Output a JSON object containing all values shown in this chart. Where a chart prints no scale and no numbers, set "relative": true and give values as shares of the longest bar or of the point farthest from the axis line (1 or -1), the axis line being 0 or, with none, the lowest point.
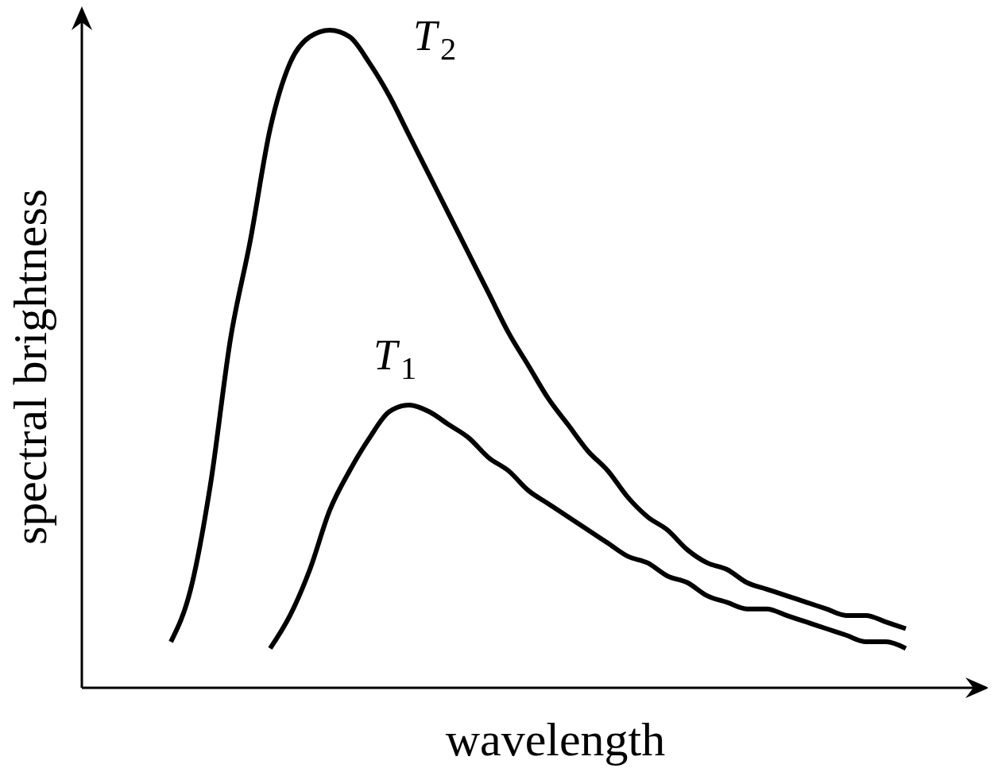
{
  "chart_data": {
    "type": "line",
    "relative": true,
    "xlabel": "wavelength",
    "ylabel": "spectral brightness",
    "categories": [
      null,
      null,
      null,
      null,
      null,
      null,
      null,
      null,
      null,
      null,
      null,
      null,
      null,
      null,
      null,
      null,
      null,
      null,
      null,
      null,
      null,
      null,
      null,
      null,
      null,
      null,
      null,
      null,
      null,
      null,
      null,
      null,
      null,
      null,
      null,
      null,
      null,
      null
    ],
    "series": [
      {
        "name": "T$_{2}$",
        "color": "#000000",
        "values": [
          0.07,
          0.15,
          0.31,
          0.53,
          0.68,
          0.85,
          0.95,
          0.99,
          1,
          0.99,
          0.95,
          0.9,
          0.84,
          0.78,
          0.72,
          0.66,
          0.6,
          0.54,
          0.49,
          0.44,
          0.4,
          0.36,
          0.33,
          0.29,
          0.26,
          0.24,
          0.21,
          0.19,
          0.18,
          0.16,
          0.15,
          0.14,
          0.13,
          0.12,
          0.11,
          0.11,
          0.1,
          0.09
        ]
      },
      {
        "name": "T$_{1}$",
        "color": "#000000",
        "values": [
          null,
          null,
          null,
          null,
          null,
          0.06,
          0.11,
          0.18,
          0.27,
          0.33,
          0.38,
          0.42,
          0.43,
          0.42,
          0.4,
          0.38,
          0.35,
          0.33,
          0.3,
          0.28,
          0.26,
          0.24,
          0.22,
          0.2,
          0.19,
          0.17,
          0.16,
          0.14,
          0.13,
          0.12,
          0.12,
          0.11,
          0.1,
          0.09,
          0.08,
          0.07,
          0.07,
          0.06
        ]
      }
    ]
  }
}
